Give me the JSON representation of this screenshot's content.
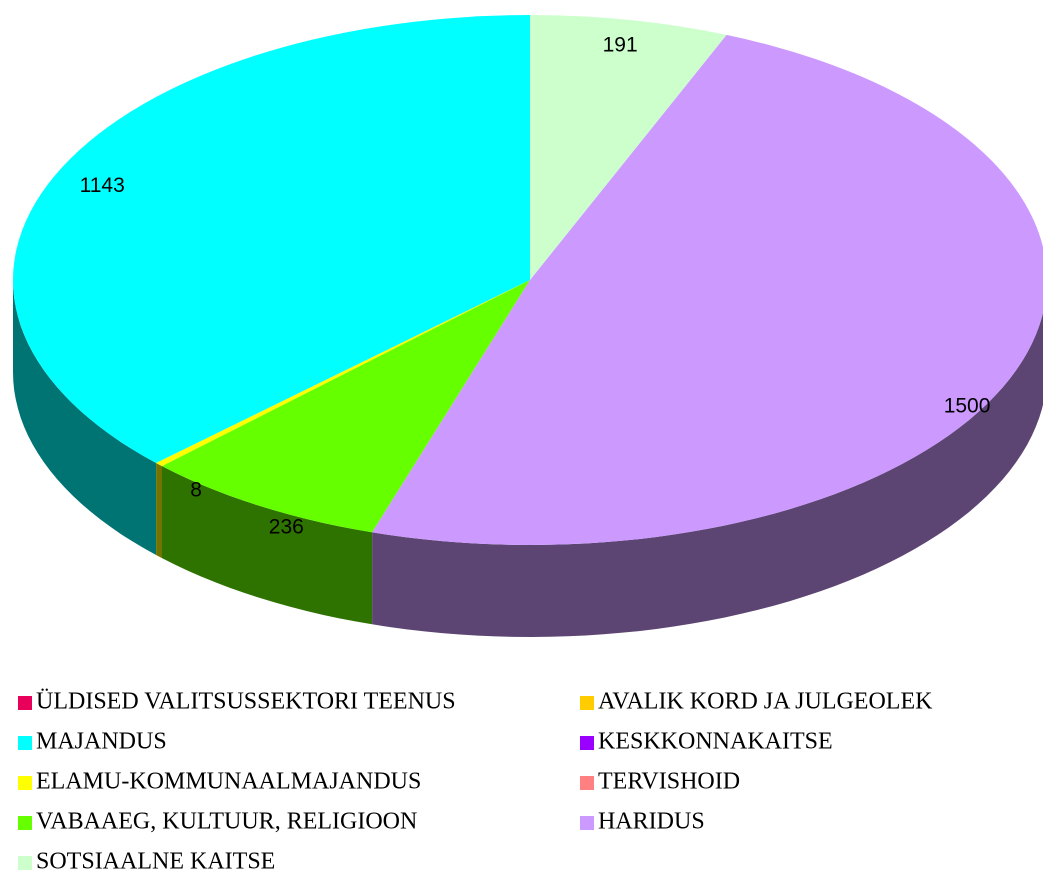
{
  "chart_data": {
    "type": "pie3d",
    "categories": [
      "ÜLDISED VALITSUSSEKTORI TEENUS",
      "AVALIK KORD JA JULGEOLEK",
      "MAJANDUS",
      "KESKKONNAKAITSE",
      "ELAMU-KOMMUNAALMAJANDUS",
      "TERVISHOID",
      "VABAAEG, KULTUUR, RELIGIOON",
      "HARIDUS",
      "SOTSIAALNE KAITSE"
    ],
    "values": [
      0,
      0,
      1143,
      0,
      8,
      0,
      236,
      1500,
      191
    ],
    "colors": [
      "#e8005a",
      "#ffcc00",
      "#00ffff",
      "#9900ff",
      "#ffff00",
      "#ff8080",
      "#66ff00",
      "#cc99ff",
      "#ccffcc"
    ]
  }
}
